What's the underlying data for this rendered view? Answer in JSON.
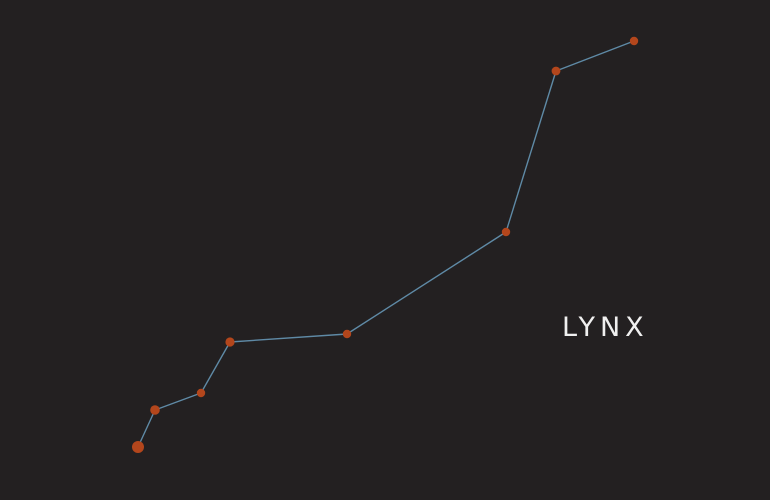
{
  "constellation": {
    "name": "LYNX"
  },
  "colors": {
    "background": "#232021",
    "line": "#5f8aa6",
    "star": "#b3461c"
  }
}
